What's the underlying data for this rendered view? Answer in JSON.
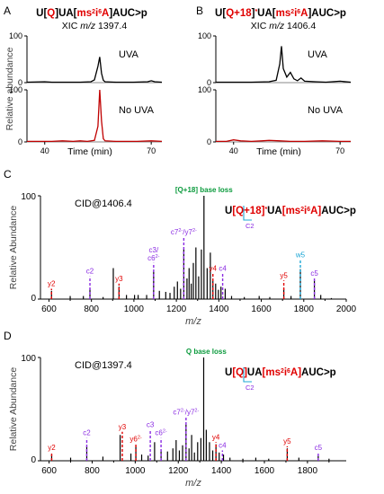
{
  "colors": {
    "ion_red": "#e00000",
    "ion_purple": "#8a2be2",
    "ion_cyan": "#1ea7d6",
    "ion_green": "#0a9a3c",
    "trace_black": "#000000",
    "trace_red": "#c00000",
    "gray_frame": "#888888"
  },
  "chart_data": [
    {
      "type": "line",
      "panel": "A",
      "title_parts": [
        {
          "text": "U[",
          "color": "black"
        },
        {
          "text": "Q",
          "color": "red"
        },
        {
          "text": "]UA[",
          "color": "black"
        },
        {
          "text": "ms",
          "color": "red"
        },
        {
          "text": "2",
          "color": "red",
          "sup": true
        },
        {
          "text": "i",
          "color": "red"
        },
        {
          "text": "6",
          "color": "red",
          "sup": true
        },
        {
          "text": "A",
          "color": "red"
        },
        {
          "text": "]AUC>p",
          "color": "black"
        }
      ],
      "subtitle_prefix": "XIC ",
      "subtitle_mz": "m/z",
      "subtitle_value": " 1397.4",
      "ylabel": "Relative abundance",
      "xlabel": "Time (min)",
      "x_ticks": [
        "40",
        "70"
      ],
      "y_ticks": [
        "100",
        "0"
      ],
      "xlim": [
        35,
        73
      ],
      "series": [
        {
          "name": "UVA",
          "color": "#000000",
          "x": [
            35,
            40,
            42,
            45,
            47,
            50,
            53,
            54,
            55,
            55.5,
            56,
            56.5,
            57,
            60,
            65,
            69,
            70,
            71,
            73
          ],
          "y": [
            1,
            2,
            1,
            1,
            1,
            1,
            2,
            6,
            35,
            55,
            20,
            5,
            2,
            1,
            1,
            2,
            4,
            2,
            1
          ]
        },
        {
          "name": "No UVA",
          "color": "#c00000",
          "x": [
            35,
            42,
            45,
            48,
            50,
            52,
            54,
            55,
            55.5,
            56,
            56.5,
            57,
            60,
            66,
            70,
            73
          ],
          "y": [
            1,
            1,
            2,
            1,
            2,
            1,
            3,
            30,
            100,
            40,
            6,
            2,
            1,
            1,
            2,
            1
          ]
        }
      ]
    },
    {
      "type": "line",
      "panel": "B",
      "title_parts": [
        {
          "text": "U[",
          "color": "black"
        },
        {
          "text": "Q+18",
          "color": "red"
        },
        {
          "text": "]",
          "color": "black"
        },
        {
          "text": "*",
          "color": "red",
          "sup": true
        },
        {
          "text": "UA[",
          "color": "black"
        },
        {
          "text": "ms",
          "color": "red"
        },
        {
          "text": "2",
          "color": "red",
          "sup": true
        },
        {
          "text": "i",
          "color": "red"
        },
        {
          "text": "6",
          "color": "red",
          "sup": true
        },
        {
          "text": "A",
          "color": "red"
        },
        {
          "text": "]AUC>p",
          "color": "black"
        }
      ],
      "subtitle_prefix": "XIC ",
      "subtitle_mz": "m/z",
      "subtitle_value": " 1406.4",
      "xlabel": "Time (min)",
      "x_ticks": [
        "40",
        "70"
      ],
      "y_ticks": [
        "100",
        "0"
      ],
      "xlim": [
        35,
        73
      ],
      "series": [
        {
          "name": "UVA",
          "color": "#000000",
          "x": [
            35,
            40,
            45,
            50,
            52,
            53,
            53.5,
            54,
            55,
            56,
            57,
            58,
            59,
            60,
            63,
            66,
            70,
            73
          ],
          "y": [
            1,
            1,
            1,
            2,
            5,
            40,
            78,
            30,
            12,
            22,
            8,
            4,
            10,
            3,
            2,
            1,
            3,
            1
          ]
        },
        {
          "name": "No UVA",
          "color": "#c00000",
          "x": [
            35,
            38,
            40,
            42,
            45,
            48,
            50,
            53,
            56,
            60,
            65,
            70,
            73
          ],
          "y": [
            1,
            1,
            4,
            2,
            1,
            2,
            3,
            2,
            1,
            1,
            2,
            1,
            1
          ]
        }
      ]
    },
    {
      "type": "bar",
      "panel": "C",
      "annotation": "CID@1406.4",
      "ylabel": "Relative Abundance",
      "xlabel": "m/z",
      "xlim": [
        560,
        2000
      ],
      "x_ticks": [
        "600",
        "800",
        "1000",
        "1200",
        "1400",
        "1600",
        "1800",
        "2000"
      ],
      "y_ticks": [
        "100",
        "0"
      ],
      "peaks_mz": [
        612,
        700,
        762,
        793,
        855,
        903,
        930,
        965,
        1003,
        1020,
        1060,
        1093,
        1120,
        1150,
        1170,
        1190,
        1205,
        1220,
        1235,
        1250,
        1260,
        1270,
        1280,
        1292,
        1305,
        1318,
        1330,
        1345,
        1360,
        1372,
        1385,
        1398,
        1410,
        1430,
        1460,
        1520,
        1590,
        1640,
        1706,
        1740,
        1784,
        1850,
        1880,
        1930
      ],
      "peaks_int": [
        8,
        3,
        3,
        10,
        2,
        30,
        12,
        4,
        4,
        4,
        4,
        27,
        8,
        7,
        6,
        12,
        17,
        10,
        48,
        20,
        30,
        15,
        35,
        50,
        22,
        48,
        100,
        30,
        45,
        18,
        15,
        9,
        12,
        10,
        3,
        2,
        3,
        2,
        10,
        3,
        29,
        18,
        4,
        1
      ],
      "labels": [
        {
          "text": "y2",
          "mz": 612,
          "level": 10,
          "color": "red"
        },
        {
          "text": "c2",
          "mz": 793,
          "level": 22,
          "color": "purple"
        },
        {
          "text": "y3",
          "mz": 930,
          "level": 15,
          "color": "red"
        },
        {
          "text": "c3/",
          "mz": 1093,
          "level": 35,
          "color": "purple",
          "line2": "c6",
          "line2_sup": "2-"
        },
        {
          "text": "c7",
          "sup": "2-",
          "mid": "/y7",
          "sup2": "2-",
          "mz": 1235,
          "level": 60,
          "color": "purple"
        },
        {
          "text": "y4",
          "mz": 1372,
          "level": 25,
          "color": "red"
        },
        {
          "text": "c4",
          "mz": 1418,
          "level": 25,
          "color": "purple"
        },
        {
          "text": "y5",
          "mz": 1706,
          "level": 18,
          "color": "red"
        },
        {
          "text": "w5",
          "mz": 1784,
          "level": 38,
          "color": "cyan"
        },
        {
          "text": "c5",
          "mz": 1850,
          "level": 20,
          "color": "purple"
        }
      ],
      "base_loss_label": "[Q+18] base loss",
      "sequence_parts": [
        {
          "text": "U",
          "color": "black"
        },
        {
          "text": "[Q+18]",
          "color": "red"
        },
        {
          "text": "*",
          "color": "red",
          "sup": true
        },
        {
          "text": "UA",
          "color": "black"
        },
        {
          "text": "[ms",
          "color": "red"
        },
        {
          "text": "2",
          "color": "red",
          "sup": true
        },
        {
          "text": "i",
          "color": "red"
        },
        {
          "text": "6",
          "color": "red",
          "sup": true
        },
        {
          "text": "A]",
          "color": "red"
        },
        {
          "text": "AUC>p",
          "color": "black"
        }
      ],
      "fragment_marker": "C2"
    },
    {
      "type": "bar",
      "panel": "D",
      "annotation": "CID@1397.4",
      "ylabel": "Relative Abundance",
      "xlabel": "m/z",
      "xlim": [
        560,
        1980
      ],
      "x_ticks": [
        "600",
        "800",
        "1000",
        "1200",
        "1400",
        "1600",
        "1800"
      ],
      "y_ticks": [
        "100",
        "0"
      ],
      "peaks_mz": [
        612,
        700,
        775,
        850,
        930,
        980,
        1003,
        1030,
        1060,
        1090,
        1120,
        1150,
        1175,
        1190,
        1205,
        1220,
        1236,
        1250,
        1262,
        1275,
        1290,
        1305,
        1318,
        1330,
        1345,
        1360,
        1375,
        1390,
        1410,
        1440,
        1500,
        1560,
        1620,
        1706,
        1760,
        1850,
        1900
      ],
      "peaks_int": [
        6,
        3,
        14,
        4,
        25,
        7,
        14,
        6,
        5,
        18,
        10,
        9,
        12,
        20,
        10,
        15,
        35,
        12,
        25,
        8,
        18,
        22,
        100,
        30,
        18,
        10,
        16,
        8,
        6,
        3,
        2,
        3,
        2,
        12,
        3,
        5,
        2
      ],
      "labels": [
        {
          "text": "y2",
          "mz": 612,
          "level": 8,
          "color": "red"
        },
        {
          "text": "c2",
          "mz": 775,
          "level": 22,
          "color": "purple"
        },
        {
          "text": "y3",
          "mz": 940,
          "level": 28,
          "color": "red"
        },
        {
          "text": "y6",
          "sup": "2-",
          "mz": 1003,
          "level": 16,
          "color": "red"
        },
        {
          "text": "c3",
          "mz": 1070,
          "level": 30,
          "color": "purple"
        },
        {
          "text": "c6",
          "sup": "2-",
          "mz": 1120,
          "level": 22,
          "color": "purple"
        },
        {
          "text": "c7",
          "sup": "2-",
          "mid": "/y7",
          "sup2": "2-",
          "mz": 1236,
          "level": 42,
          "color": "purple"
        },
        {
          "text": "y4",
          "mz": 1375,
          "level": 18,
          "color": "red"
        },
        {
          "text": "c4",
          "mz": 1405,
          "level": 10,
          "color": "purple"
        },
        {
          "text": "y5",
          "mz": 1706,
          "level": 14,
          "color": "red"
        },
        {
          "text": "c5",
          "mz": 1850,
          "level": 8,
          "color": "purple"
        }
      ],
      "base_loss_label": "Q base loss",
      "sequence_parts": [
        {
          "text": "U",
          "color": "black"
        },
        {
          "text": "[Q]",
          "color": "red"
        },
        {
          "text": "UA",
          "color": "black"
        },
        {
          "text": "[ms",
          "color": "red"
        },
        {
          "text": "2",
          "color": "red",
          "sup": true
        },
        {
          "text": "i",
          "color": "red"
        },
        {
          "text": "6",
          "color": "red",
          "sup": true
        },
        {
          "text": "A]",
          "color": "red"
        },
        {
          "text": "AUC>p",
          "color": "black"
        }
      ],
      "fragment_marker": "C2"
    }
  ],
  "panel_letters": {
    "a": "A",
    "b": "B",
    "c": "C",
    "d": "D"
  }
}
